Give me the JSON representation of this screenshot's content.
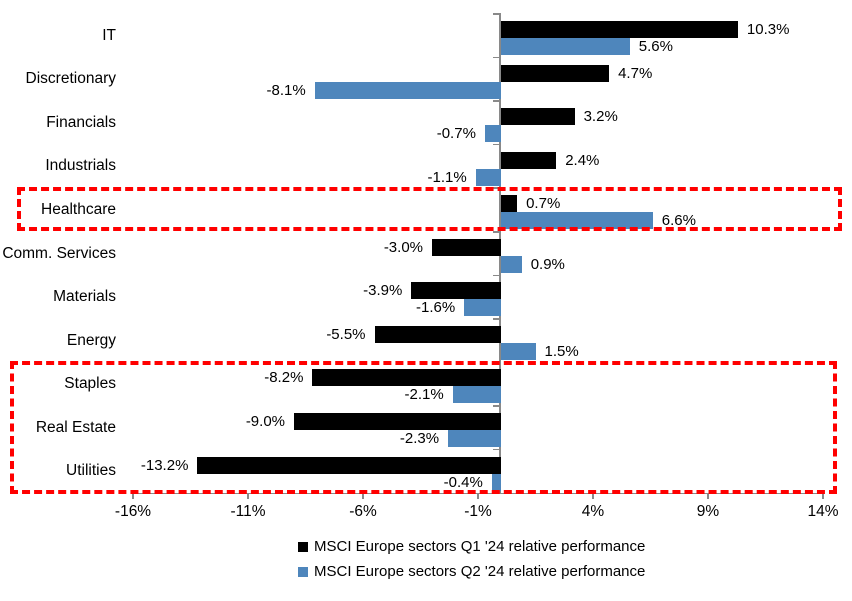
{
  "chart_data": {
    "type": "bar",
    "orientation": "horizontal",
    "title": "",
    "xlabel": "",
    "ylabel": "",
    "categories": [
      "IT",
      "Discretionary",
      "Financials",
      "Industrials",
      "Healthcare",
      "Comm. Services",
      "Materials",
      "Energy",
      "Staples",
      "Real Estate",
      "Utilities"
    ],
    "series": [
      {
        "name": "MSCI Europe sectors Q1 '24 relative performance",
        "color": "#000000",
        "values": [
          10.3,
          4.7,
          3.2,
          2.4,
          0.7,
          -3.0,
          -3.9,
          -5.5,
          -8.2,
          -9.0,
          -13.2
        ],
        "labels": [
          "10.3%",
          "4.7%",
          "3.2%",
          "2.4%",
          "0.7%",
          "-3.0%",
          "-3.9%",
          "-5.5%",
          "-8.2%",
          "-9.0%",
          "-13.2%"
        ]
      },
      {
        "name": "MSCI Europe sectors Q2 '24 relative performance",
        "color": "#4e86bc",
        "values": [
          5.6,
          -8.1,
          -0.7,
          -1.1,
          6.6,
          0.9,
          -1.6,
          1.5,
          -2.1,
          -2.3,
          -0.4
        ],
        "labels": [
          "5.6%",
          "-8.1%",
          "-0.7%",
          "-1.1%",
          "6.6%",
          "0.9%",
          "-1.6%",
          "1.5%",
          "-2.1%",
          "-2.3%",
          "-0.4%"
        ]
      }
    ],
    "x_ticks": [
      "-16%",
      "-11%",
      "-6%",
      "-1%",
      "4%",
      "9%",
      "14%"
    ],
    "x_tick_values": [
      -16,
      -11,
      -6,
      -1,
      4,
      9,
      14
    ],
    "xlim": [
      -16,
      14
    ],
    "grid": false,
    "legend_position": "bottom",
    "highlighted_groups": [
      [
        "Healthcare"
      ],
      [
        "Staples",
        "Real Estate",
        "Utilities"
      ]
    ]
  },
  "colors": {
    "q1_bar": "#000000",
    "q2_bar": "#4e86bc",
    "highlight_box": "#ff0000",
    "axis": "#898989",
    "text": "#000000",
    "background": "#ffffff"
  }
}
